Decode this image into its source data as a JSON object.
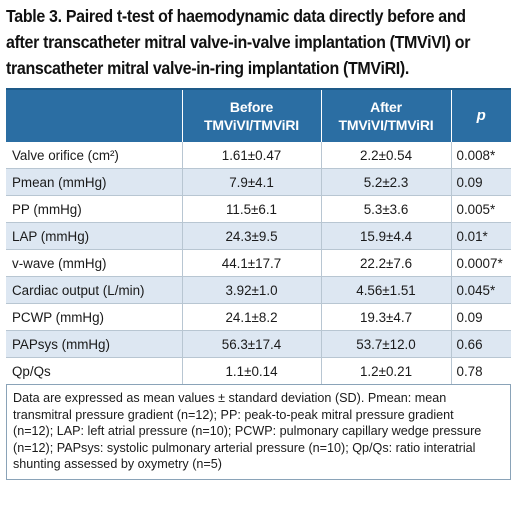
{
  "caption": {
    "line1": "Table 3. Paired t-test of haemodynamic data directly before and",
    "line2": "after transcatheter mitral valve-in-valve implantation (TMViVI) or",
    "line3": "transcatheter mitral valve-in-ring implantation (TMViRI)."
  },
  "table": {
    "headers": {
      "parameter": "",
      "before_line1": "Before",
      "before_line2": "TMViVI/TMViRI",
      "after_line1": "After",
      "after_line2": "TMViVI/TMViRI",
      "p": "p"
    },
    "rows": [
      {
        "parameter": "Valve orifice (cm²)",
        "before": "1.61±0.47",
        "after": "2.2±0.54",
        "p": "0.008*"
      },
      {
        "parameter": "Pmean (mmHg)",
        "before": "7.9±4.1",
        "after": "5.2±2.3",
        "p": "0.09"
      },
      {
        "parameter": "PP (mmHg)",
        "before": "11.5±6.1",
        "after": "5.3±3.6",
        "p": "0.005*"
      },
      {
        "parameter": "LAP (mmHg)",
        "before": "24.3±9.5",
        "after": "15.9±4.4",
        "p": "0.01*"
      },
      {
        "parameter": "v-wave (mmHg)",
        "before": "44.1±17.7",
        "after": "22.2±7.6",
        "p": "0.0007*"
      },
      {
        "parameter": "Cardiac output (L/min)",
        "before": "3.92±1.0",
        "after": "4.56±1.51",
        "p": "0.045*"
      },
      {
        "parameter": "PCWP (mmHg)",
        "before": "24.1±8.2",
        "after": "19.3±4.7",
        "p": "0.09"
      },
      {
        "parameter": "PAPsys (mmHg)",
        "before": "56.3±17.4",
        "after": "53.7±12.0",
        "p": "0.66"
      },
      {
        "parameter": "Qp/Qs",
        "before": "1.1±0.14",
        "after": "1.2±0.21",
        "p": "0.78"
      }
    ],
    "footnote": {
      "line1": "Data are expressed as mean values ± standard deviation (SD). Pmean: mean",
      "line2": "transmitral pressure gradient (n=12); PP: peak-to-peak mitral pressure gradient",
      "line3": "(n=12); LAP: left atrial pressure (n=10); PCWP: pulmonary capillary wedge pressure",
      "line4": "(n=12); PAPsys: systolic pulmonary arterial pressure (n=10); Qp/Qs: ratio interatrial",
      "line5": "shunting assessed by oxymetry (n=5)"
    }
  },
  "colors": {
    "header_background": "#2b6ea3",
    "header_text": "#ffffff",
    "band_row": "#dde7f2",
    "grid_line": "#b8c6d2"
  }
}
